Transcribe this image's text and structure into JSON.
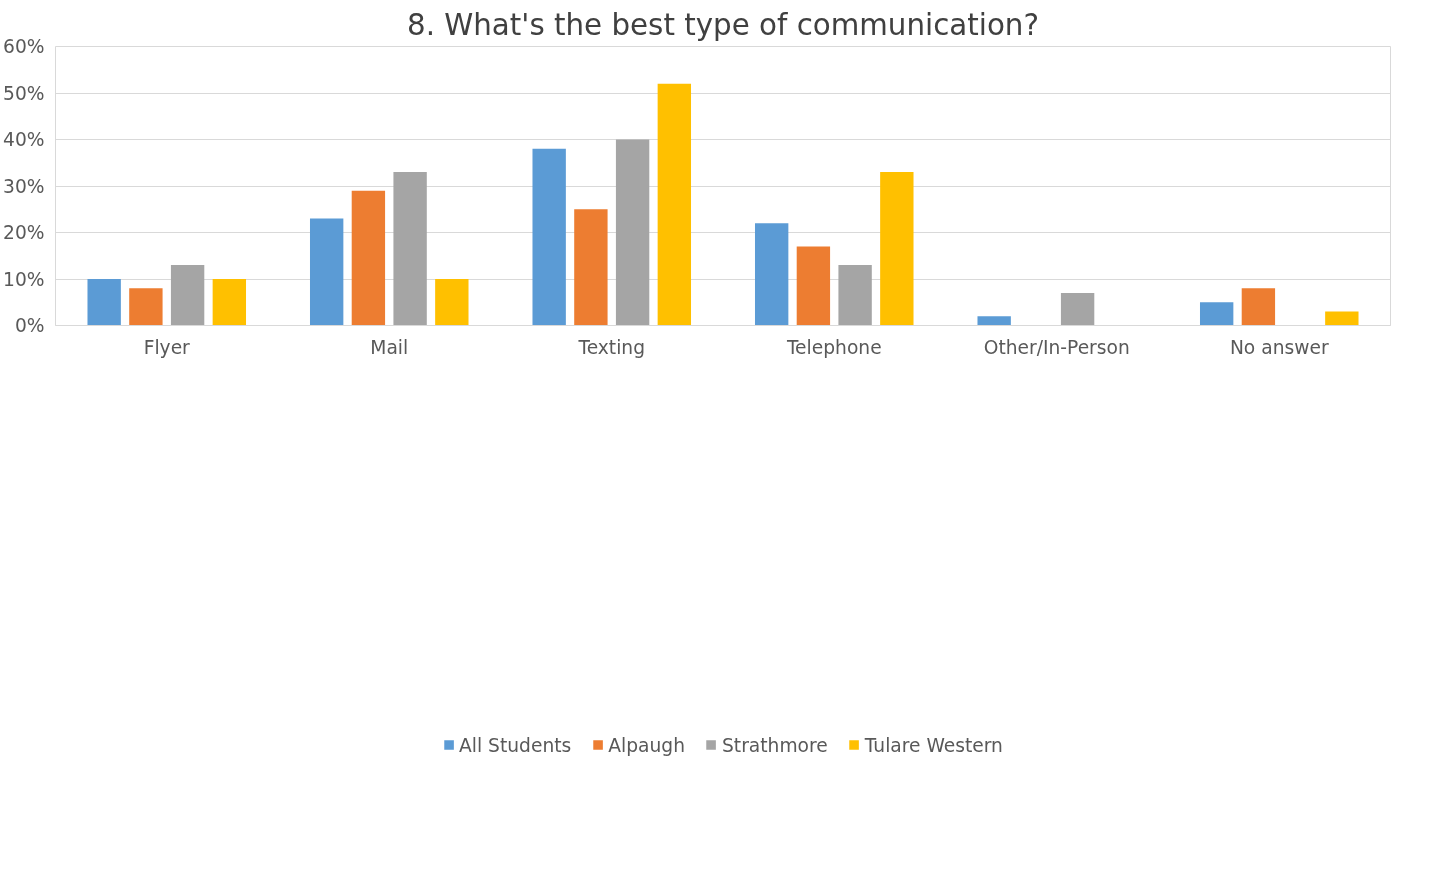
{
  "chart_data": {
    "type": "bar",
    "title": "8. What's the best type of communication?",
    "categories": [
      "Flyer",
      "Mail",
      "Texting",
      "Telephone",
      "Other/In-Person",
      "No answer"
    ],
    "series": [
      {
        "name": "All Students",
        "color": "#5b9bd5",
        "values": [
          10,
          23,
          38,
          22,
          2,
          5
        ]
      },
      {
        "name": "Alpaugh",
        "color": "#ed7d31",
        "values": [
          8,
          29,
          25,
          17,
          0,
          8
        ]
      },
      {
        "name": "Strathmore",
        "color": "#a5a5a5",
        "values": [
          13,
          33,
          40,
          13,
          7,
          0
        ]
      },
      {
        "name": "Tulare Western",
        "color": "#ffc000",
        "values": [
          10,
          10,
          52,
          33,
          0,
          3
        ]
      }
    ],
    "ylim": [
      0,
      60
    ],
    "yticks": [
      {
        "value": 0,
        "label": "0%"
      },
      {
        "value": 10,
        "label": "10%"
      },
      {
        "value": 20,
        "label": "20%"
      },
      {
        "value": 30,
        "label": "30%"
      },
      {
        "value": 40,
        "label": "40%"
      },
      {
        "value": 50,
        "label": "50%"
      },
      {
        "value": 60,
        "label": "60%"
      }
    ],
    "grid": "y",
    "legend": "bottom"
  }
}
